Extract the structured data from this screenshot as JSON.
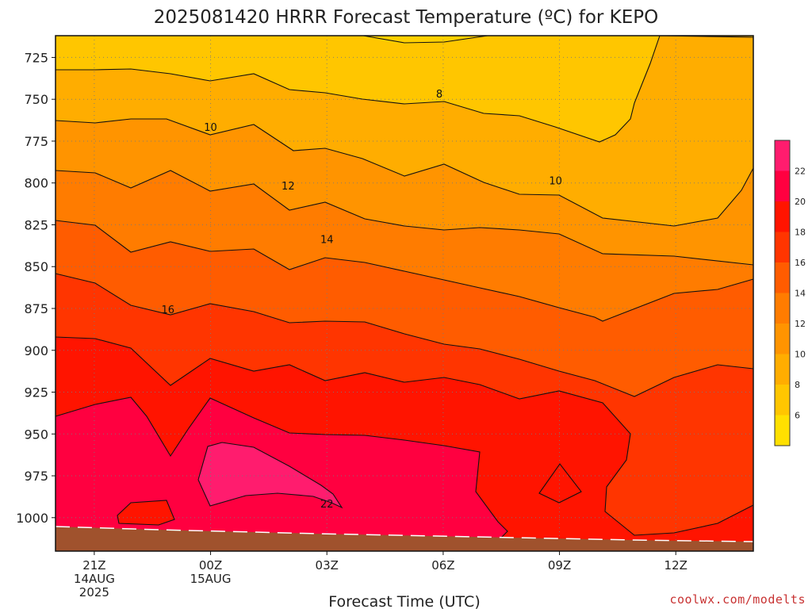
{
  "chart_data": {
    "type": "contour",
    "title": "2025081420 HRRR Forecast Temperature (ºC) for KEPO",
    "xlabel": "Forecast Time (UTC)",
    "ylabel": "",
    "y_ticks": [
      "725",
      "750",
      "775",
      "800",
      "825",
      "850",
      "875",
      "900",
      "925",
      "950",
      "975",
      "1000"
    ],
    "y_values": [
      725,
      750,
      775,
      800,
      825,
      850,
      875,
      900,
      925,
      950,
      975,
      1000
    ],
    "ylim": [
      712,
      1020
    ],
    "y_inverted": true,
    "x_ticks": [
      {
        "hour": 21,
        "lines": [
          "21Z",
          "14AUG",
          "2025"
        ]
      },
      {
        "hour": 24,
        "lines": [
          "00Z",
          "15AUG"
        ]
      },
      {
        "hour": 27,
        "lines": [
          "03Z"
        ]
      },
      {
        "hour": 30,
        "lines": [
          "06Z"
        ]
      },
      {
        "hour": 33,
        "lines": [
          "09Z"
        ]
      },
      {
        "hour": 36,
        "lines": [
          "12Z"
        ]
      }
    ],
    "xlim": [
      20,
      38
    ],
    "grid": true,
    "contour_interval": 2,
    "contour_labels": [
      {
        "value": "8",
        "hour": 29.9,
        "p": 748
      },
      {
        "value": "10",
        "hour": 24.0,
        "p": 768
      },
      {
        "value": "10",
        "hour": 32.9,
        "p": 800
      },
      {
        "value": "12",
        "hour": 26.0,
        "p": 803
      },
      {
        "value": "14",
        "hour": 27.0,
        "p": 835
      },
      {
        "value": "16",
        "hour": 22.9,
        "p": 877
      },
      {
        "value": "22",
        "hour": 27.0,
        "p": 993
      }
    ],
    "colorbar": {
      "levels": [
        6,
        8,
        10,
        12,
        14,
        16,
        18,
        20,
        22
      ],
      "labels": [
        "6",
        "8",
        "10",
        "12",
        "14",
        "16",
        "18",
        "20",
        "22"
      ],
      "colors": [
        "#ffe000",
        "#ffc600",
        "#ffad00",
        "#ff9400",
        "#ff7c00",
        "#ff5c00",
        "#ff3500",
        "#ff1400",
        "#ff0040",
        "#ff1c6e"
      ]
    },
    "ground_color": "#a0522d"
  },
  "credit": "coolwx.com/modelts"
}
